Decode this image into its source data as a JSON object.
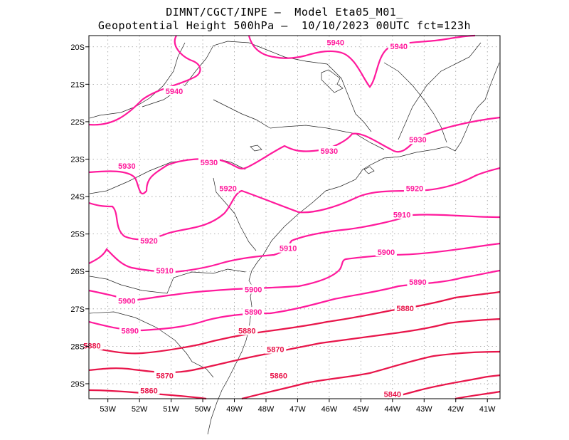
{
  "title": {
    "line1": "DIMNT/CGCT/INPE –  Model Eta05_M01_",
    "line2": "Geopotential Height 500hPa –  10/10/2023 00UTC fct=123h"
  },
  "colors": {
    "contour_high": "#ff1a9c",
    "contour_low": "#e8154a",
    "coast": "#222222",
    "grid": "#999999"
  },
  "axes": {
    "lon_labels": [
      "53W",
      "52W",
      "51W",
      "50W",
      "49W",
      "48W",
      "47W",
      "46W",
      "45W",
      "44W",
      "43W",
      "42W",
      "41W"
    ],
    "lat_labels": [
      "20S",
      "21S",
      "22S",
      "23S",
      "24S",
      "25S",
      "26S",
      "27S",
      "28S",
      "29S"
    ]
  },
  "chart_data": {
    "type": "contour_map",
    "variable": "Geopotential Height 500hPa",
    "lon_range": [
      -53.6,
      -40.6
    ],
    "lat_range": [
      -29.4,
      -19.7
    ],
    "grid": true,
    "contour_levels": [
      5840,
      5860,
      5870,
      5880,
      5890,
      5900,
      5910,
      5920,
      5930,
      5940
    ],
    "labels": [
      {
        "text": "5940",
        "lon": -45.8,
        "lat": -19.9
      },
      {
        "text": "5940",
        "lon": -43.8,
        "lat": -20.0
      },
      {
        "text": "5940",
        "lon": -50.9,
        "lat": -21.2
      },
      {
        "text": "5930",
        "lon": -52.4,
        "lat": -23.2
      },
      {
        "text": "5930",
        "lon": -49.8,
        "lat": -23.1
      },
      {
        "text": "5930",
        "lon": -46.0,
        "lat": -22.8
      },
      {
        "text": "5930",
        "lon": -43.2,
        "lat": -22.5
      },
      {
        "text": "5920",
        "lon": -49.2,
        "lat": -23.8
      },
      {
        "text": "5920",
        "lon": -43.3,
        "lat": -23.8
      },
      {
        "text": "5920",
        "lon": -51.7,
        "lat": -25.2
      },
      {
        "text": "5910",
        "lon": -43.7,
        "lat": -24.5
      },
      {
        "text": "5910",
        "lon": -47.3,
        "lat": -25.4
      },
      {
        "text": "5910",
        "lon": -51.2,
        "lat": -26.0
      },
      {
        "text": "5900",
        "lon": -44.2,
        "lat": -25.5
      },
      {
        "text": "5900",
        "lon": -48.4,
        "lat": -26.5
      },
      {
        "text": "5900",
        "lon": -52.4,
        "lat": -26.8
      },
      {
        "text": "5890",
        "lon": -43.2,
        "lat": -26.3
      },
      {
        "text": "5890",
        "lon": -48.4,
        "lat": -27.1
      },
      {
        "text": "5890",
        "lon": -52.3,
        "lat": -27.6
      },
      {
        "text": "5880",
        "lon": -43.6,
        "lat": -27.0
      },
      {
        "text": "5880",
        "lon": -48.6,
        "lat": -27.6
      },
      {
        "text": "5880",
        "lon": -53.5,
        "lat": -28.0
      },
      {
        "text": "5870",
        "lon": -47.7,
        "lat": -28.1
      },
      {
        "text": "5870",
        "lon": -51.2,
        "lat": -28.8
      },
      {
        "text": "5860",
        "lon": -47.6,
        "lat": -28.8
      },
      {
        "text": "5860",
        "lon": -51.7,
        "lat": -29.2
      },
      {
        "text": "5840",
        "lon": -44.0,
        "lat": -29.3
      }
    ]
  }
}
